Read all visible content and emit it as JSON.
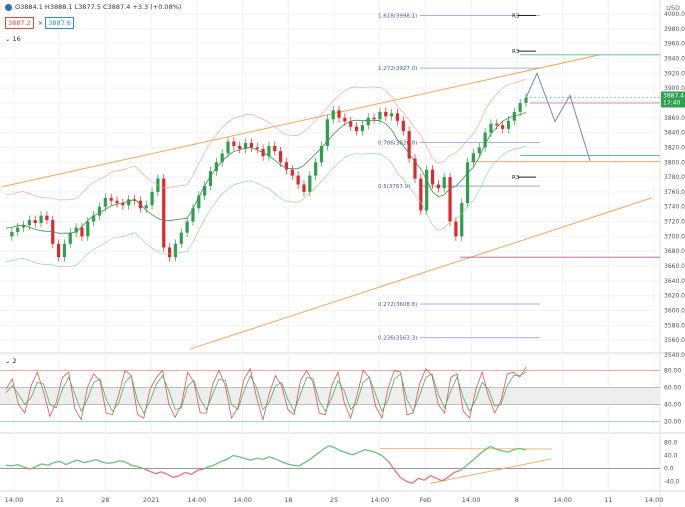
{
  "header": {
    "ohlc_text": "O3884.1 H3888.1 L3877.5 C3887.4 +3.3 (+0.08%)",
    "sell_price": "3887.2",
    "buy_price": "3887.6",
    "currency": "USD",
    "indicators_count": "16",
    "osc_tag": "2"
  },
  "chart_data": {
    "type": "line",
    "price_axis": [
      3540,
      3560,
      3580,
      3600,
      3620,
      3640,
      3660,
      3680,
      3700,
      3720,
      3740,
      3760,
      3780,
      3800,
      3820,
      3840,
      3860,
      3880,
      3900,
      3920,
      3940,
      3960,
      3980,
      4000
    ],
    "current_price": "3887.4",
    "countdown": "17:40",
    "time_labels": [
      "14:00",
      "21",
      "28",
      "2021",
      "14:00",
      "14:00",
      "18",
      "25",
      "14:00",
      "Feb",
      "14:00",
      "8",
      "14:00",
      "11",
      "14:00"
    ],
    "fib_levels": [
      {
        "label": "1.618(3998.1)",
        "value": 3998.1
      },
      {
        "label": "1.272(3927.0)",
        "value": 3927.0
      },
      {
        "label": "0.786(3826.8)",
        "value": 3826.8
      },
      {
        "label": "0.5(3767.9)",
        "value": 3767.9
      },
      {
        "label": "0.272(3608.8)",
        "value": 3608.8
      },
      {
        "label": "0.236(3563.3)",
        "value": 3563.3
      }
    ],
    "pivot_labels": [
      "R3",
      "R3",
      "R3"
    ],
    "price_series": [
      3700,
      3706,
      3712,
      3715,
      3722,
      3718,
      3728,
      3722,
      3690,
      3672,
      3690,
      3705,
      3712,
      3700,
      3720,
      3728,
      3740,
      3752,
      3748,
      3745,
      3742,
      3750,
      3748,
      3738,
      3742,
      3760,
      3778,
      3685,
      3672,
      3690,
      3705,
      3720,
      3738,
      3755,
      3768,
      3788,
      3800,
      3812,
      3828,
      3822,
      3818,
      3826,
      3820,
      3818,
      3808,
      3822,
      3815,
      3800,
      3790,
      3782,
      3770,
      3760,
      3782,
      3800,
      3822,
      3858,
      3870,
      3860,
      3855,
      3848,
      3842,
      3850,
      3860,
      3858,
      3868,
      3862,
      3866,
      3856,
      3842,
      3805,
      3778,
      3735,
      3790,
      3770,
      3765,
      3780,
      3720,
      3700,
      3745,
      3800,
      3812,
      3820,
      3840,
      3852,
      3850,
      3845,
      3856,
      3868,
      3880,
      3887
    ],
    "projection": [
      3887,
      3920,
      3855,
      3890,
      3802
    ],
    "osc_axis": [
      "80.00",
      "60.00",
      "40.00",
      "20.00"
    ],
    "osc2_axis": [
      "80.0",
      "40.0",
      "0.0",
      "-40.0"
    ],
    "stoch_k": [
      58,
      70,
      40,
      30,
      62,
      78,
      55,
      26,
      42,
      72,
      78,
      35,
      22,
      60,
      76,
      68,
      30,
      28,
      52,
      80,
      74,
      28,
      24,
      58,
      72,
      80,
      40,
      25,
      40,
      78,
      66,
      30,
      30,
      64,
      80,
      62,
      24,
      36,
      70,
      82,
      48,
      22,
      52,
      74,
      62,
      34,
      28,
      68,
      80,
      66,
      30,
      28,
      62,
      78,
      42,
      24,
      50,
      80,
      72,
      38,
      24,
      60,
      80,
      78,
      28,
      30,
      64,
      82,
      74,
      40,
      30,
      72,
      76,
      32,
      24,
      58,
      78,
      50,
      30,
      44,
      76,
      78,
      72,
      84
    ],
    "stoch_d": [
      54,
      62,
      52,
      40,
      48,
      66,
      64,
      40,
      36,
      58,
      72,
      52,
      32,
      46,
      66,
      70,
      46,
      32,
      42,
      66,
      74,
      44,
      30,
      44,
      64,
      74,
      56,
      34,
      36,
      62,
      68,
      46,
      34,
      52,
      70,
      68,
      40,
      34,
      56,
      74,
      60,
      34,
      42,
      62,
      66,
      46,
      32,
      52,
      72,
      70,
      44,
      32,
      48,
      68,
      56,
      34,
      42,
      66,
      72,
      52,
      32,
      46,
      70,
      76,
      46,
      32,
      50,
      72,
      76,
      52,
      36,
      56,
      72,
      48,
      32,
      46,
      66,
      58,
      38,
      40,
      62,
      74,
      74,
      78
    ],
    "momentum": [
      10,
      8,
      12,
      4,
      -2,
      6,
      14,
      10,
      18,
      22,
      12,
      20,
      26,
      18,
      22,
      28,
      20,
      16,
      18,
      24,
      20,
      10,
      6,
      0,
      -8,
      -16,
      -10,
      -18,
      -28,
      -22,
      -12,
      -18,
      -6,
      -2,
      6,
      12,
      22,
      28,
      40,
      36,
      30,
      26,
      32,
      28,
      36,
      30,
      22,
      14,
      10,
      8,
      18,
      30,
      44,
      58,
      70,
      64,
      54,
      48,
      42,
      50,
      58,
      54,
      48,
      38,
      22,
      -4,
      -28,
      -40,
      -46,
      -30,
      -36,
      -22,
      -30,
      -38,
      -26,
      -12,
      -6,
      8,
      24,
      40,
      56,
      68,
      60,
      54,
      50,
      58,
      62,
      56
    ]
  }
}
